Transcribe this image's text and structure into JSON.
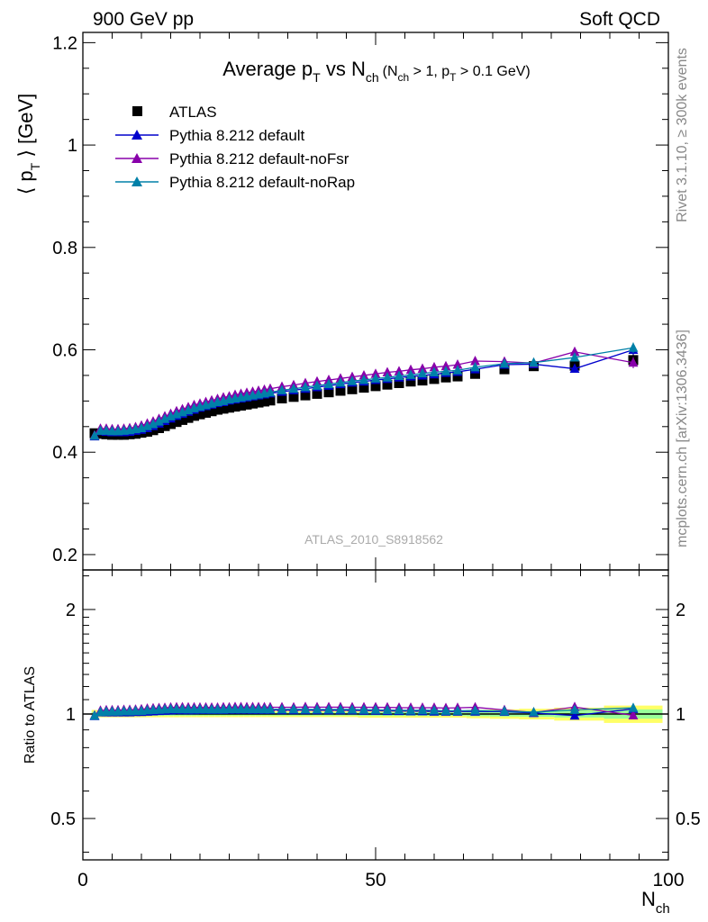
{
  "header": {
    "left": "900 GeV pp",
    "right": "Soft QCD"
  },
  "side_text": {
    "rivet": "Rivet 3.1.10, ≥ 300k events",
    "mcplots": "mcplots.cern.ch [arXiv:1306.3436]"
  },
  "colors": {
    "atlas": "#000000",
    "default": "#0000cc",
    "noFsr": "#8800aa",
    "noRap": "#0080a8",
    "band_inner": "#99ff99",
    "band_outer": "#ffff66"
  },
  "chart_data": [
    {
      "type": "scatter",
      "panel": "main",
      "title": {
        "base": "Average p",
        "base_sub": "T",
        "mid": " vs N",
        "mid_sub": "ch",
        "paren_a": "(N",
        "paren_a_sub": "ch",
        "paren_b": " > 1, p",
        "paren_b_sub": "T",
        "paren_c": " > 0.1 GeV)"
      },
      "ylabel": "⟨ p",
      "ylabel_sub": "T",
      "ylabel_tail": " ⟩  [GeV]",
      "watermark": "ATLAS_2010_S8918562",
      "ylim": [
        0.17,
        1.22
      ],
      "xlim": [
        0,
        100
      ],
      "yticks": [
        0.2,
        0.4,
        0.6,
        0.8,
        1.0,
        1.2
      ],
      "yticklabels": [
        "0.2",
        "0.4",
        "0.6",
        "0.8",
        "1",
        "1.2"
      ],
      "legend_position": "top-left",
      "x": [
        2,
        3,
        4,
        5,
        6,
        7,
        8,
        9,
        10,
        11,
        12,
        13,
        14,
        15,
        16,
        17,
        18,
        19,
        20,
        21,
        22,
        23,
        24,
        25,
        26,
        27,
        28,
        29,
        30,
        31,
        32,
        34,
        36,
        38,
        40,
        42,
        44,
        46,
        48,
        50,
        52,
        54,
        56,
        58,
        60,
        62,
        64,
        67,
        72,
        77,
        84,
        94
      ],
      "series": [
        {
          "name": "ATLAS",
          "marker": "square",
          "color": "#000000",
          "values": [
            0.437,
            0.436,
            0.435,
            0.434,
            0.434,
            0.434,
            0.435,
            0.436,
            0.438,
            0.44,
            0.443,
            0.447,
            0.451,
            0.455,
            0.459,
            0.463,
            0.467,
            0.471,
            0.474,
            0.477,
            0.48,
            0.483,
            0.485,
            0.487,
            0.489,
            0.491,
            0.493,
            0.495,
            0.497,
            0.499,
            0.501,
            0.505,
            0.508,
            0.511,
            0.514,
            0.517,
            0.52,
            0.523,
            0.526,
            0.529,
            0.532,
            0.535,
            0.538,
            0.54,
            0.543,
            0.546,
            0.548,
            0.553,
            0.562,
            0.568,
            0.569,
            0.58
          ],
          "errors": [
            0.003,
            0.002,
            0.002,
            0.002,
            0.002,
            0.002,
            0.002,
            0.002,
            0.002,
            0.002,
            0.002,
            0.002,
            0.002,
            0.002,
            0.002,
            0.002,
            0.002,
            0.002,
            0.002,
            0.002,
            0.002,
            0.002,
            0.002,
            0.002,
            0.002,
            0.002,
            0.002,
            0.002,
            0.002,
            0.002,
            0.002,
            0.002,
            0.002,
            0.002,
            0.002,
            0.002,
            0.002,
            0.002,
            0.003,
            0.003,
            0.003,
            0.003,
            0.003,
            0.003,
            0.003,
            0.003,
            0.003,
            0.004,
            0.005,
            0.006,
            0.008,
            0.012
          ]
        },
        {
          "name": "Pythia 8.212 default",
          "marker": "triangle",
          "color": "#0000cc",
          "values": [
            0.431,
            0.441,
            0.44,
            0.439,
            0.439,
            0.439,
            0.44,
            0.442,
            0.444,
            0.447,
            0.451,
            0.456,
            0.461,
            0.466,
            0.471,
            0.475,
            0.479,
            0.483,
            0.487,
            0.49,
            0.493,
            0.496,
            0.498,
            0.501,
            0.503,
            0.505,
            0.507,
            0.509,
            0.511,
            0.513,
            0.515,
            0.518,
            0.521,
            0.524,
            0.527,
            0.53,
            0.533,
            0.536,
            0.538,
            0.541,
            0.543,
            0.546,
            0.548,
            0.55,
            0.552,
            0.555,
            0.557,
            0.562,
            0.571,
            0.572,
            0.563,
            0.6
          ],
          "errors": [
            0,
            0,
            0,
            0,
            0,
            0,
            0,
            0,
            0,
            0,
            0,
            0,
            0,
            0,
            0,
            0,
            0,
            0,
            0,
            0,
            0,
            0,
            0,
            0,
            0,
            0,
            0,
            0,
            0,
            0,
            0,
            0,
            0,
            0,
            0,
            0,
            0,
            0,
            0,
            0,
            0,
            0,
            0,
            0,
            0,
            0,
            0,
            0.003,
            0.004,
            0.005,
            0.006,
            0.01
          ]
        },
        {
          "name": "Pythia 8.212 default-noFsr",
          "marker": "triangle",
          "color": "#8800aa",
          "values": [
            0.433,
            0.446,
            0.446,
            0.445,
            0.445,
            0.446,
            0.447,
            0.449,
            0.452,
            0.456,
            0.46,
            0.465,
            0.47,
            0.475,
            0.48,
            0.484,
            0.488,
            0.492,
            0.495,
            0.498,
            0.501,
            0.504,
            0.507,
            0.509,
            0.512,
            0.514,
            0.516,
            0.518,
            0.52,
            0.522,
            0.524,
            0.528,
            0.531,
            0.535,
            0.538,
            0.541,
            0.544,
            0.547,
            0.55,
            0.553,
            0.556,
            0.558,
            0.561,
            0.563,
            0.566,
            0.568,
            0.571,
            0.578,
            0.577,
            0.574,
            0.596,
            0.575
          ],
          "errors": [
            0,
            0,
            0,
            0,
            0,
            0,
            0,
            0,
            0,
            0,
            0,
            0,
            0,
            0,
            0,
            0,
            0,
            0,
            0,
            0,
            0,
            0,
            0,
            0,
            0,
            0,
            0,
            0,
            0,
            0,
            0,
            0,
            0,
            0,
            0,
            0,
            0,
            0,
            0,
            0,
            0,
            0,
            0,
            0,
            0,
            0,
            0,
            0.003,
            0.004,
            0.005,
            0.007,
            0.011
          ]
        },
        {
          "name": "Pythia 8.212 default-noRap",
          "marker": "triangle",
          "color": "#0080a8",
          "values": [
            0.432,
            0.442,
            0.442,
            0.441,
            0.441,
            0.442,
            0.443,
            0.445,
            0.447,
            0.451,
            0.455,
            0.46,
            0.465,
            0.47,
            0.474,
            0.478,
            0.482,
            0.486,
            0.489,
            0.492,
            0.495,
            0.498,
            0.5,
            0.503,
            0.505,
            0.507,
            0.509,
            0.511,
            0.513,
            0.515,
            0.517,
            0.521,
            0.524,
            0.527,
            0.53,
            0.533,
            0.536,
            0.539,
            0.541,
            0.544,
            0.546,
            0.549,
            0.551,
            0.554,
            0.556,
            0.558,
            0.56,
            0.566,
            0.573,
            0.575,
            0.585,
            0.604
          ],
          "errors": [
            0,
            0,
            0,
            0,
            0,
            0,
            0,
            0,
            0,
            0,
            0,
            0,
            0,
            0,
            0,
            0,
            0,
            0,
            0,
            0,
            0,
            0,
            0,
            0,
            0,
            0,
            0,
            0,
            0,
            0,
            0,
            0,
            0,
            0,
            0,
            0,
            0,
            0,
            0,
            0,
            0,
            0,
            0,
            0,
            0,
            0,
            0,
            0.003,
            0.004,
            0.005,
            0.006,
            0.01
          ]
        }
      ]
    },
    {
      "type": "line",
      "panel": "ratio",
      "ylabel": "Ratio to ATLAS",
      "xlabel": "N",
      "xlabel_sub": "ch",
      "xlim": [
        0,
        100
      ],
      "ylog": true,
      "ylim": [
        0.38,
        2.6
      ],
      "xticks": [
        0,
        50,
        100
      ],
      "xticklabels": [
        "0",
        "50",
        "100"
      ],
      "yticks": [
        0.5,
        1,
        2
      ],
      "yticklabels": [
        "0.5",
        "1",
        "2"
      ],
      "reference_line": 1.0
    }
  ]
}
